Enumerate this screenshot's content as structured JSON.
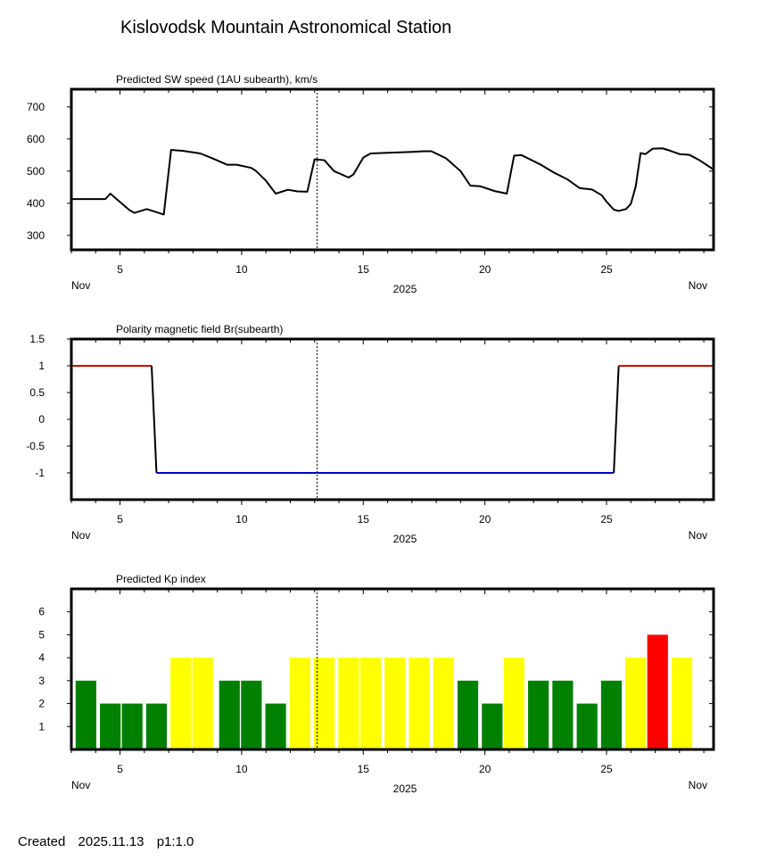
{
  "title": "Kislovodsk Mountain Astronomical Station",
  "footer": {
    "label": "Created",
    "date": "2025.11.13",
    "version": "p1:1.0"
  },
  "x_axis": {
    "range": [
      3,
      29.4
    ],
    "ticks": [
      5,
      10,
      15,
      20,
      25
    ],
    "tick_labels": [
      "5",
      "10",
      "15",
      "20",
      "25"
    ],
    "month_left": "Nov",
    "month_right": "Nov",
    "year": "2025",
    "current_day": 13.1
  },
  "chart_data": [
    {
      "type": "line",
      "title": "Predicted SW speed (1AU subearth), km/s",
      "ylim": [
        255,
        755
      ],
      "yticks": [
        300,
        400,
        500,
        600,
        700
      ],
      "ytick_labels": [
        "300",
        "400",
        "500",
        "600",
        "700"
      ],
      "color": "#000000",
      "x": [
        3.0,
        4.4,
        4.6,
        5.4,
        5.6,
        6.1,
        6.8,
        7.1,
        7.6,
        8.3,
        8.8,
        9.4,
        9.8,
        10.4,
        10.6,
        11.0,
        11.4,
        11.9,
        12.3,
        12.7,
        13.0,
        13.4,
        13.8,
        14.4,
        14.6,
        15.0,
        15.3,
        16.0,
        17.0,
        17.5,
        17.8,
        18.4,
        19.0,
        19.4,
        19.8,
        20.4,
        20.9,
        21.2,
        21.5,
        22.3,
        22.8,
        23.4,
        23.9,
        24.4,
        24.8,
        25.0,
        25.3,
        25.5,
        25.8,
        26.0,
        26.2,
        26.4,
        26.6,
        26.9,
        27.3,
        27.6,
        28.0,
        28.4,
        28.8,
        29.4
      ],
      "values": [
        413,
        413,
        430,
        378,
        370,
        382,
        365,
        566,
        563,
        555,
        540,
        520,
        520,
        510,
        500,
        470,
        430,
        442,
        437,
        436,
        537,
        534,
        500,
        480,
        490,
        542,
        555,
        557,
        560,
        562,
        562,
        540,
        500,
        455,
        453,
        438,
        430,
        548,
        550,
        520,
        497,
        474,
        447,
        443,
        425,
        405,
        380,
        376,
        382,
        398,
        452,
        556,
        553,
        570,
        571,
        564,
        553,
        551,
        535,
        505
      ]
    },
    {
      "type": "line",
      "title": "Polarity magnetic field  Br(subearth)",
      "ylim": [
        -1.5,
        1.5
      ],
      "yticks": [
        -1,
        -0.5,
        0,
        0.5,
        1,
        1.5
      ],
      "ytick_labels": [
        "-1",
        "-0.5",
        "0",
        "0.5",
        "1",
        "1.5"
      ],
      "series": [
        {
          "name": "positive",
          "color": "#cc0000",
          "x": [
            3.0,
            6.3
          ],
          "values": [
            1,
            1
          ]
        },
        {
          "name": "transition-down",
          "color": "#000000",
          "x": [
            6.3,
            6.5
          ],
          "values": [
            1,
            -1
          ]
        },
        {
          "name": "negative",
          "color": "#0000cc",
          "x": [
            6.5,
            25.3
          ],
          "values": [
            -1,
            -1
          ]
        },
        {
          "name": "transition-up",
          "color": "#000000",
          "x": [
            25.3,
            25.5
          ],
          "values": [
            -1,
            1
          ]
        },
        {
          "name": "positive-late",
          "color": "#cc0000",
          "x": [
            25.5,
            29.4
          ],
          "values": [
            1,
            1
          ]
        }
      ]
    },
    {
      "type": "bar",
      "title": "Predicted Kp index",
      "ylim": [
        0,
        7
      ],
      "yticks": [
        1,
        2,
        3,
        4,
        5,
        6
      ],
      "ytick_labels": [
        "1",
        "2",
        "3",
        "4",
        "5",
        "6"
      ],
      "bar_width_days": 0.85,
      "colors": {
        "quiet": "#008000",
        "active": "#ffff00",
        "storm": "#ff0000"
      },
      "x": [
        3.6,
        4.6,
        5.5,
        6.5,
        7.5,
        8.4,
        9.5,
        10.4,
        11.4,
        12.4,
        13.4,
        14.4,
        15.3,
        16.3,
        17.3,
        18.3,
        19.3,
        20.3,
        21.2,
        22.2,
        23.2,
        24.2,
        25.2,
        26.2,
        27.1,
        28.1
      ],
      "values": [
        3,
        2,
        2,
        2,
        4,
        4,
        3,
        3,
        2,
        4,
        4,
        4,
        4,
        4,
        4,
        4,
        3,
        2,
        4,
        3,
        3,
        2,
        3,
        4,
        5,
        4
      ]
    }
  ]
}
